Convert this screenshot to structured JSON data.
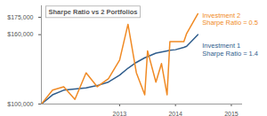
{
  "chart_data": {
    "type": "line",
    "title": "Sharpe Ratio vs 2 Portfolios",
    "x": [
      2011.6,
      2011.8,
      2012.0,
      2012.2,
      2012.4,
      2012.6,
      2012.8,
      2013.0,
      2013.15,
      2013.3,
      2013.45,
      2013.5,
      2013.65,
      2013.75,
      2013.85,
      2013.9,
      2014.0,
      2014.15,
      2014.2,
      2014.4
    ],
    "series": [
      {
        "name": "Investment 1",
        "annotation": "Sharpe Ratio = 1.4",
        "color": "#2f5d8c",
        "values": [
          100000,
          108000,
          112000,
          113000,
          114000,
          116000,
          119000,
          125000,
          131000,
          136000,
          140000,
          141000,
          144000,
          145000,
          146000,
          146500,
          147000,
          149000,
          150000,
          160000
        ]
      },
      {
        "name": "Investment 2",
        "annotation": "Sharpe Ratio = 0.5",
        "color": "#f08a24",
        "values": [
          100000,
          112000,
          115000,
          104000,
          127000,
          115000,
          122000,
          138000,
          169000,
          127000,
          108000,
          146000,
          119000,
          135000,
          108000,
          154000,
          154000,
          154000,
          161000,
          178000
        ]
      }
    ],
    "xlim": [
      2011.6,
      2015.2
    ],
    "xticks": [
      2013,
      2014,
      2015
    ],
    "ylim": [
      100000,
      185000
    ],
    "yticks": [
      {
        "value": 100000,
        "label": "$100,000"
      },
      {
        "value": 160000,
        "label": "$160,000"
      },
      {
        "value": 175000,
        "label": "$175,000"
      }
    ],
    "grid": false
  }
}
